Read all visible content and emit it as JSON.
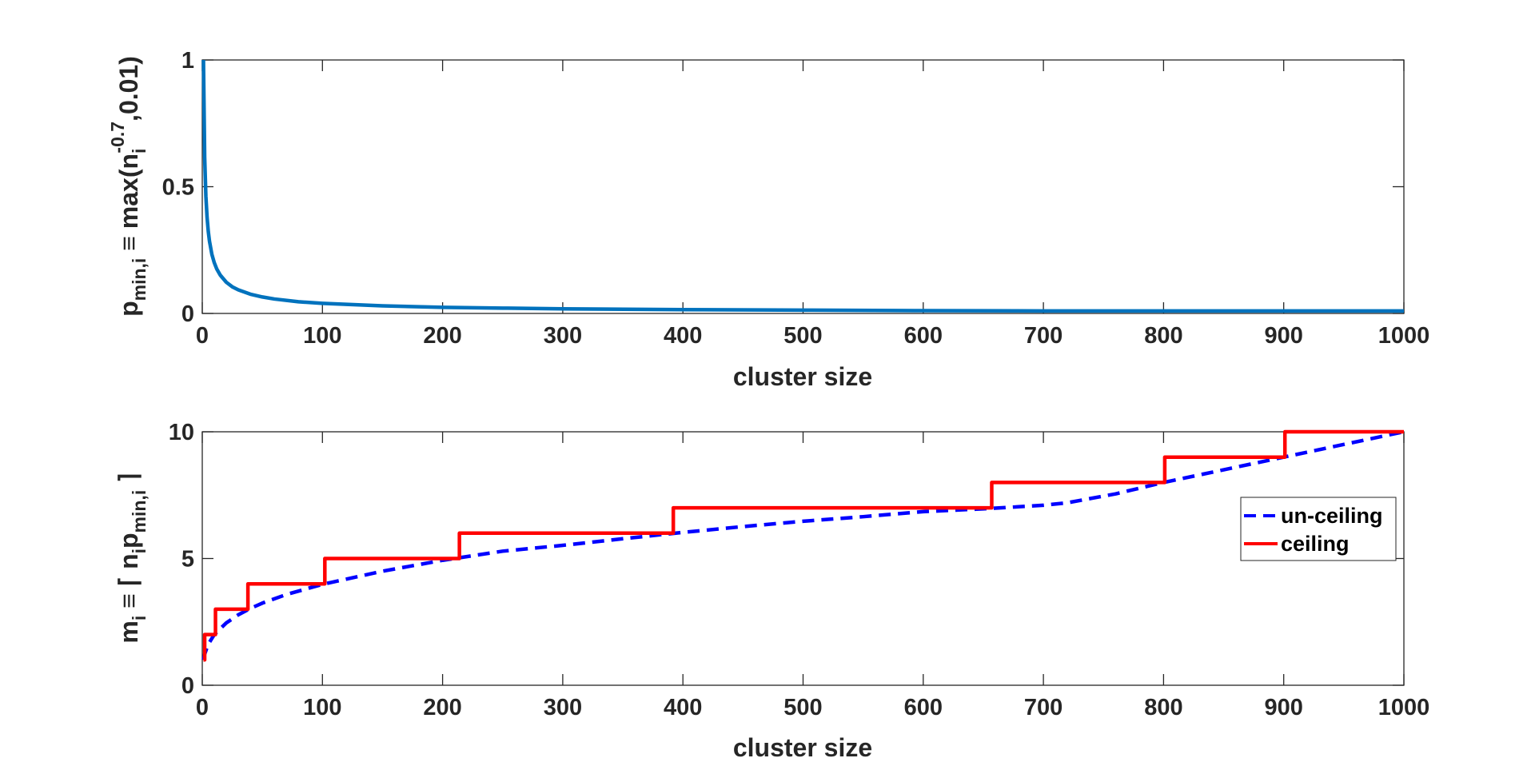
{
  "chart_data": [
    {
      "type": "line",
      "title": "",
      "xlabel": "cluster size",
      "ylabel": {
        "prefix": "p",
        "sub1": "min,i",
        "mid": " ≡ max(n",
        "sub2": "i",
        "sup": "-0.7",
        "suffix": ",0.01)"
      },
      "xlim": [
        0,
        1000
      ],
      "ylim": [
        0,
        1
      ],
      "xticks": [
        0,
        100,
        200,
        300,
        400,
        500,
        600,
        700,
        800,
        900,
        1000
      ],
      "yticks": [
        0,
        0.5,
        1
      ],
      "xtick_labels": [
        "0",
        "100",
        "200",
        "300",
        "400",
        "500",
        "600",
        "700",
        "800",
        "900",
        "1000"
      ],
      "ytick_labels": [
        "0",
        "0.5",
        "1"
      ],
      "grid": false,
      "series": [
        {
          "color": "#0072BD",
          "style": "solid",
          "x": [
            1,
            2,
            3,
            4,
            5,
            6,
            8,
            10,
            12,
            15,
            20,
            25,
            30,
            40,
            50,
            60,
            80,
            100,
            150,
            200,
            250,
            300,
            400,
            500,
            600,
            700,
            800,
            900,
            1000
          ],
          "y": [
            1.0,
            0.616,
            0.463,
            0.379,
            0.324,
            0.285,
            0.233,
            0.2,
            0.176,
            0.151,
            0.123,
            0.105,
            0.093,
            0.076,
            0.065,
            0.057,
            0.046,
            0.04,
            0.03,
            0.024,
            0.021,
            0.018,
            0.015,
            0.013,
            0.011,
            0.01,
            0.01,
            0.01,
            0.01
          ]
        }
      ]
    },
    {
      "type": "line",
      "title": "",
      "xlabel": "cluster size",
      "ylabel": {
        "prefix": "m",
        "sub1": "i",
        "mid": " ≡ ⌈ n",
        "sub2": "i",
        "mid2": "p",
        "sub3": "min,i",
        "suffix": " ⌉"
      },
      "xlim": [
        0,
        1000
      ],
      "ylim": [
        0,
        10
      ],
      "xticks": [
        0,
        100,
        200,
        300,
        400,
        500,
        600,
        700,
        800,
        900,
        1000
      ],
      "yticks": [
        0,
        5,
        10
      ],
      "xtick_labels": [
        "0",
        "100",
        "200",
        "300",
        "400",
        "500",
        "600",
        "700",
        "800",
        "900",
        "1000"
      ],
      "ytick_labels": [
        "0",
        "5",
        "10"
      ],
      "grid": false,
      "legend": "right",
      "series": [
        {
          "name": "un-ceiling",
          "color": "#0000FF",
          "style": "dashed",
          "x": [
            1,
            2,
            5,
            10,
            20,
            30,
            40,
            50,
            70,
            100,
            150,
            200,
            250,
            300,
            350,
            400,
            450,
            500,
            550,
            600,
            650,
            700,
            720,
            760,
            800,
            850,
            900,
            950,
            1000
          ],
          "y": [
            1.0,
            1.23,
            1.62,
            2.0,
            2.46,
            2.78,
            3.03,
            3.24,
            3.58,
            3.98,
            4.5,
            4.93,
            5.29,
            5.52,
            5.78,
            6.03,
            6.26,
            6.47,
            6.65,
            6.85,
            6.96,
            7.1,
            7.2,
            7.55,
            8.0,
            8.5,
            9.0,
            9.5,
            10.0
          ]
        },
        {
          "name": "ceiling",
          "color": "#FF0000",
          "style": "solid",
          "x": [
            1,
            2,
            2,
            11,
            11,
            38,
            38,
            102,
            102,
            214,
            214,
            392,
            392,
            657,
            657,
            801,
            801,
            901,
            901,
            1000
          ],
          "y": [
            1,
            1,
            2,
            2,
            3,
            3,
            4,
            4,
            5,
            5,
            6,
            6,
            7,
            7,
            8,
            8,
            9,
            9,
            10,
            10
          ]
        }
      ]
    }
  ]
}
